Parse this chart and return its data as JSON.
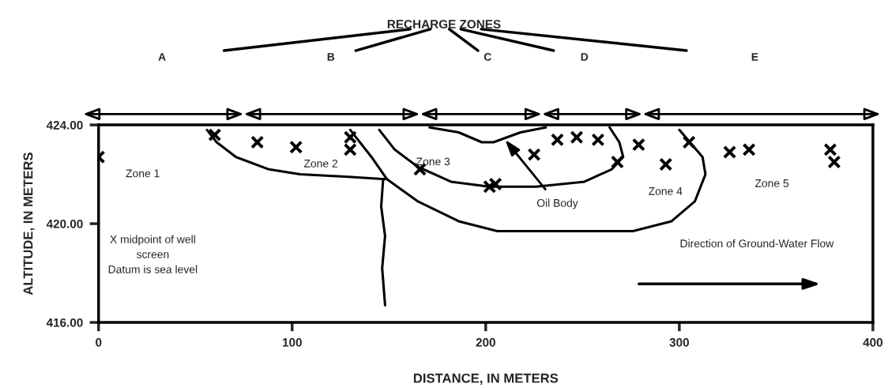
{
  "chart_data": {
    "type": "scatter",
    "title": "RECHARGE ZONES",
    "xlabel": "DISTANCE, IN METERS",
    "ylabel": "ALTITUDE, IN METERS",
    "xlim": [
      0,
      400
    ],
    "xticks": [
      0,
      100,
      200,
      300,
      400
    ],
    "ylim": [
      416,
      424
    ],
    "yticks": [
      {
        "value": 416,
        "label": "416.00"
      },
      {
        "value": 420,
        "label": "420.00"
      },
      {
        "value": 424,
        "label": "424.00"
      }
    ],
    "grid": false,
    "legend": false,
    "series": [
      {
        "marker": "cross",
        "color": "#000000",
        "x": [
          0,
          60,
          82,
          102,
          130,
          130,
          166,
          202,
          205,
          225,
          237,
          247,
          258,
          268,
          279,
          293,
          305,
          326,
          336,
          378,
          380
        ],
        "values": [
          422.7,
          423.6,
          423.3,
          423.1,
          423.5,
          423.0,
          422.2,
          421.5,
          421.6,
          422.8,
          423.4,
          423.5,
          423.4,
          422.5,
          423.2,
          422.4,
          423.3,
          422.9,
          423.0,
          423.0,
          422.5
        ]
      },
      {
        "type": "line",
        "color": "#000000",
        "x": [
          56,
          61,
          71,
          88,
          104,
          129,
          148
        ],
        "values": [
          423.8,
          423.3,
          422.7,
          422.2,
          422.0,
          421.9,
          421.8
        ]
      },
      {
        "type": "line",
        "color": "#000000",
        "x": [
          147,
          146,
          148,
          146.5,
          148
        ],
        "values": [
          421.8,
          420.7,
          419.5,
          418.2,
          416.7
        ]
      },
      {
        "type": "line",
        "color": "#000000",
        "x": [
          130,
          141,
          149,
          165,
          186,
          206,
          276,
          296,
          308,
          313.5,
          312,
          300
        ],
        "values": [
          423.8,
          422.7,
          421.8,
          420.9,
          420.1,
          419.7,
          419.7,
          420.1,
          420.9,
          422.0,
          422.7,
          423.8
        ]
      },
      {
        "type": "line",
        "color": "#000000",
        "x": [
          145,
          153,
          165,
          182,
          202,
          226,
          251,
          265,
          271,
          269,
          264
        ],
        "values": [
          423.8,
          423.0,
          422.3,
          421.7,
          421.5,
          421.5,
          421.7,
          422.2,
          422.7,
          423.3,
          423.9
        ]
      },
      {
        "type": "line",
        "color": "#000000",
        "x": [
          171,
          186,
          198,
          204,
          218,
          231
        ],
        "values": [
          423.9,
          423.7,
          423.3,
          423.3,
          423.7,
          423.9
        ]
      }
    ],
    "annotations": [
      "A",
      "B",
      "C",
      "D",
      "E",
      "Zone 1",
      "Zone 2",
      "Zone 3",
      "Zone 4",
      "Zone 5",
      {
        "text": "Oil Body",
        "x": 210,
        "y": 423.4
      },
      "X midpoint of well\nscreen\nDatum is sea level",
      "Direction of Ground-Water Flow"
    ]
  }
}
